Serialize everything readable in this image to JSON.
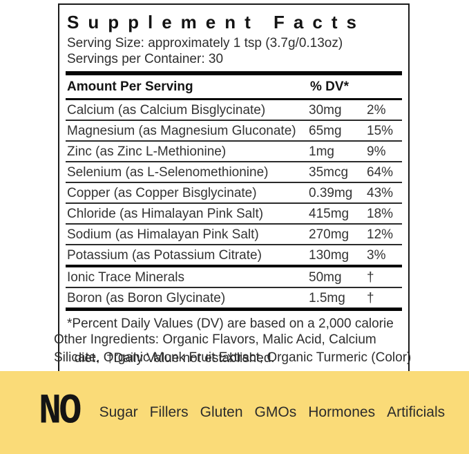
{
  "panel": {
    "title": "Supplement Facts",
    "serving_size": "Serving Size: approximately 1 tsp (3.7g/0.13oz)",
    "servings_per_container": "Servings per Container: 30",
    "header": {
      "amount_per_serving": "Amount Per Serving",
      "dv": "% DV*"
    },
    "rows": [
      {
        "name": "Calcium (as Calcium Bisglycinate)",
        "amount": "30mg",
        "dv": "2%"
      },
      {
        "name": "Magnesium (as Magnesium Gluconate)",
        "amount": "65mg",
        "dv": "15%"
      },
      {
        "name": "Zinc (as Zinc L-Methionine)",
        "amount": "1mg",
        "dv": "9%"
      },
      {
        "name": "Selenium (as L-Selenomethionine)",
        "amount": "35mcg",
        "dv": "64%"
      },
      {
        "name": "Copper (as Copper Bisglycinate)",
        "amount": "0.39mg",
        "dv": "43%"
      },
      {
        "name": "Chloride (as Himalayan Pink Salt)",
        "amount": "415mg",
        "dv": "18%"
      },
      {
        "name": "Sodium (as Himalayan Pink Salt)",
        "amount": "270mg",
        "dv": "12%"
      },
      {
        "name": "Potassium (as Potassium Citrate)",
        "amount": "130mg",
        "dv": "3%"
      }
    ],
    "secondary_rows": [
      {
        "name": "Ionic Trace Minerals",
        "amount": "50mg",
        "dv": "†"
      },
      {
        "name": "Boron (as Boron Glycinate)",
        "amount": "1.5mg",
        "dv": "†"
      }
    ],
    "footnote_lines": [
      "*Percent Daily Values (DV) are based on a 2,000 calorie",
      "diet.  †Daily Value not established."
    ]
  },
  "other_ingredients": {
    "lines": [
      "Other Ingredients: Organic Flavors, Malic Acid, Calcium",
      "Silicate, Organic Monk Fruit Extract, Organic Turmeric (Color)"
    ]
  },
  "banner": {
    "no": "NO",
    "items": [
      "Sugar",
      "Fillers",
      "Gluten",
      "GMOs",
      "Hormones",
      "Artificials"
    ],
    "background_color": "#FADB78"
  }
}
